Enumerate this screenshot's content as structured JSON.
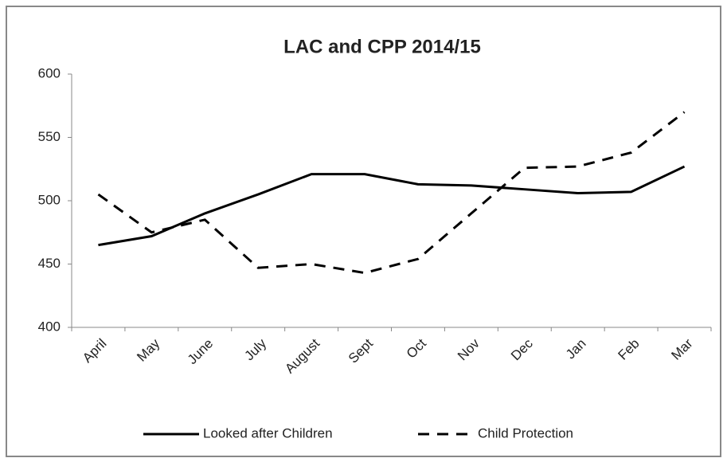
{
  "chart_data": {
    "type": "line",
    "title": "LAC and CPP 2014/15",
    "categories": [
      "April",
      "May",
      "June",
      "July",
      "August",
      "Sept",
      "Oct",
      "Nov",
      "Dec",
      "Jan",
      "Feb",
      "Mar"
    ],
    "series": [
      {
        "name": "Looked after Children",
        "color": "#000000",
        "dash": "solid",
        "values": [
          465,
          472,
          490,
          505,
          521,
          521,
          513,
          512,
          509,
          506,
          507,
          527
        ]
      },
      {
        "name": "Child Protection",
        "color": "#000000",
        "dash": "dashed",
        "values": [
          505,
          475,
          485,
          447,
          450,
          443,
          454,
          490,
          526,
          527,
          538,
          570
        ]
      }
    ],
    "ylim": [
      400,
      600
    ],
    "yticks": [
      400,
      450,
      500,
      550,
      600
    ],
    "grid": false,
    "legend": "bottom"
  }
}
